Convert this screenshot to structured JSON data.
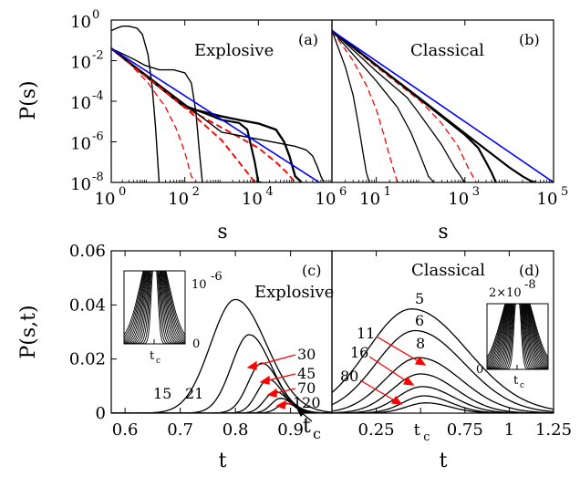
{
  "colors": {
    "black": "#000000",
    "red": "#ff0000",
    "blue": "#0000ff"
  },
  "chart_data": [
    {
      "id": "a",
      "type": "line",
      "panel_label": "(a)",
      "title": "Explosive",
      "ylabel": "P(s)",
      "xlabel": "s",
      "xscale": "log",
      "yscale": "log",
      "xlim": [
        1,
        1000000
      ],
      "ylim": [
        1e-08,
        1
      ],
      "xticks": [
        {
          "v": 1,
          "t": "10",
          "e": "0"
        },
        {
          "v": 100,
          "t": "10",
          "e": "2"
        },
        {
          "v": 10000,
          "t": "10",
          "e": "4"
        },
        {
          "v": 1000000,
          "t": "10",
          "e": "6"
        }
      ],
      "yticks": [
        {
          "v": 1,
          "t": "10",
          "e": "0"
        },
        {
          "v": 0.01,
          "t": "10",
          "e": "-2"
        },
        {
          "v": 0.0001,
          "t": "10",
          "e": "-4"
        },
        {
          "v": 1e-06,
          "t": "10",
          "e": "-6"
        },
        {
          "v": 1e-08,
          "t": "10",
          "e": "-8"
        }
      ],
      "series": [
        {
          "color": "black",
          "style": "solid",
          "width": 1.4,
          "x": [
            1,
            1.5,
            2,
            3,
            5,
            7,
            10,
            13,
            16,
            20
          ],
          "y": [
            0.3,
            0.42,
            0.5,
            0.5,
            0.4,
            0.2,
            0.02,
            0.0005,
            5e-06,
            1e-08
          ]
        },
        {
          "color": "black",
          "style": "solid",
          "width": 1.4,
          "x": [
            1,
            2,
            4,
            8,
            20,
            50,
            100,
            150,
            200,
            250,
            300
          ],
          "y": [
            0.04,
            0.022,
            0.012,
            0.006,
            0.0035,
            0.0035,
            0.0025,
            0.0008,
            3e-05,
            3e-07,
            1e-08
          ]
        },
        {
          "color": "red",
          "style": "dashed",
          "width": 1.3,
          "x": [
            1,
            3,
            10,
            30,
            60,
            100,
            150,
            200
          ],
          "y": [
            0.04,
            0.008,
            0.0008,
            5e-05,
            4e-06,
            3e-07,
            2e-08,
            1e-08
          ]
        },
        {
          "color": "black",
          "style": "solid",
          "width": 2.2,
          "x": [
            1,
            10,
            100,
            500,
            1000,
            3000,
            5000,
            8000,
            10000,
            12000
          ],
          "y": [
            0.04,
            0.0015,
            6e-05,
            2e-05,
            1.2e-05,
            8.5e-06,
            4e-06,
            1e-07,
            1e-08,
            1e-08
          ]
        },
        {
          "color": "red",
          "style": "dashed",
          "width": 1.9,
          "x": [
            1,
            10,
            100,
            1000,
            2000,
            4000,
            6000,
            8000
          ],
          "y": [
            0.04,
            0.0015,
            5e-05,
            1.2e-06,
            2.5e-07,
            5e-08,
            2e-08,
            1e-08
          ]
        },
        {
          "color": "black",
          "style": "solid",
          "width": 2.4,
          "x": [
            1,
            100,
            1000,
            3000,
            10000,
            30000,
            50000,
            70000,
            100000,
            150000
          ],
          "y": [
            0.04,
            5e-05,
            1.8e-05,
            1.2e-05,
            8e-06,
            4e-06,
            1e-06,
            2e-07,
            2e-08,
            1e-08
          ]
        },
        {
          "color": "red",
          "style": "dashed",
          "width": 1.9,
          "x": [
            1,
            100,
            1000,
            10000,
            30000,
            60000,
            100000
          ],
          "y": [
            0.04,
            5e-05,
            5e-06,
            5e-07,
            1e-07,
            3e-08,
            1e-08
          ]
        },
        {
          "color": "black",
          "style": "solid",
          "width": 1.4,
          "x": [
            1,
            1000,
            100000,
            200000,
            300000,
            400000,
            500000,
            600000
          ],
          "y": [
            0.04,
            3e-06,
            6e-07,
            4e-07,
            2e-07,
            6e-08,
            2e-08,
            1e-08
          ]
        },
        {
          "color": "blue",
          "style": "solid",
          "width": 1.6,
          "x": [
            1,
            1000000
          ],
          "y": [
            0.04,
            4e-09
          ]
        }
      ]
    },
    {
      "id": "b",
      "type": "line",
      "panel_label": "(b)",
      "title": "Classical",
      "xlabel": "s",
      "xscale": "log",
      "yscale": "log",
      "xlim": [
        1,
        100000
      ],
      "ylim": [
        1e-08,
        1
      ],
      "xticks": [
        {
          "v": 10,
          "t": "10",
          "e": "1"
        },
        {
          "v": 1000,
          "t": "10",
          "e": "3"
        },
        {
          "v": 100000,
          "t": "10",
          "e": "5"
        }
      ],
      "series": [
        {
          "color": "black",
          "style": "solid",
          "width": 1.3,
          "x": [
            1,
            2,
            3,
            4,
            5,
            6,
            7
          ],
          "y": [
            0.3,
            0.005,
            0.0002,
            6e-06,
            3e-07,
            3e-08,
            1e-08
          ]
        },
        {
          "color": "red",
          "style": "dashed",
          "width": 1.3,
          "x": [
            1,
            3,
            6,
            10,
            15,
            20,
            30
          ],
          "y": [
            0.3,
            0.01,
            0.0006,
            4e-05,
            2e-06,
            2e-07,
            1e-08
          ]
        },
        {
          "color": "black",
          "style": "solid",
          "width": 1.3,
          "x": [
            1,
            3,
            10,
            30,
            60,
            100,
            150,
            200
          ],
          "y": [
            0.3,
            0.02,
            0.001,
            5e-05,
            3e-06,
            2e-07,
            2e-08,
            1e-08
          ]
        },
        {
          "color": "black",
          "style": "solid",
          "width": 1.3,
          "x": [
            1,
            10,
            50,
            100,
            300,
            600,
            1000
          ],
          "y": [
            0.3,
            0.003,
            0.00015,
            2e-05,
            7e-07,
            5e-08,
            1e-08
          ]
        },
        {
          "color": "red",
          "style": "dashed",
          "width": 1.3,
          "x": [
            1,
            10,
            100,
            300,
            700,
            1200,
            1800
          ],
          "y": [
            0.3,
            0.005,
            0.0001,
            8e-06,
            6e-07,
            5e-08,
            1e-08
          ]
        },
        {
          "color": "black",
          "style": "solid",
          "width": 2.2,
          "x": [
            1,
            10,
            100,
            1000,
            2000,
            3000,
            4000,
            5000
          ],
          "y": [
            0.3,
            0.006,
            0.00012,
            2.2e-06,
            5e-07,
            1e-07,
            3e-08,
            1e-08
          ]
        },
        {
          "color": "black",
          "style": "solid",
          "width": 2.2,
          "x": [
            1,
            10,
            100,
            1000,
            10000,
            20000,
            30000,
            40000
          ],
          "y": [
            0.3,
            0.006,
            0.00013,
            2.6e-06,
            5.5e-08,
            2e-08,
            1.2e-08,
            1e-08
          ]
        },
        {
          "color": "blue",
          "style": "solid",
          "width": 1.6,
          "x": [
            1,
            100000
          ],
          "y": [
            0.3,
            1e-08
          ]
        }
      ]
    },
    {
      "id": "c",
      "type": "line",
      "panel_label": "(c)",
      "title": "Explosive",
      "ylabel": "P(s,t)",
      "xlabel": "t",
      "xlim": [
        0.575,
        0.975
      ],
      "ylim": [
        0,
        0.06
      ],
      "xticks": [
        {
          "v": 0.6,
          "t": "0.6"
        },
        {
          "v": 0.7,
          "t": "0.7"
        },
        {
          "v": 0.8,
          "t": "0.8"
        },
        {
          "v": 0.9,
          "t": "0.9"
        }
      ],
      "yticks": [
        {
          "v": 0,
          "t": "0"
        },
        {
          "v": 0.02,
          "t": "0.02"
        },
        {
          "v": 0.04,
          "t": "0.04"
        },
        {
          "v": 0.06,
          "t": "0.06"
        }
      ],
      "peaks": [
        {
          "center": 0.8,
          "height": 0.042,
          "width": 0.045,
          "label": "15"
        },
        {
          "center": 0.825,
          "height": 0.029,
          "width": 0.032,
          "label": "21"
        },
        {
          "center": 0.848,
          "height": 0.0185,
          "width": 0.025
        },
        {
          "center": 0.86,
          "height": 0.0125,
          "width": 0.021
        },
        {
          "center": 0.872,
          "height": 0.008,
          "width": 0.019
        },
        {
          "center": 0.882,
          "height": 0.0055,
          "width": 0.017
        },
        {
          "center": 0.892,
          "height": 0.0036,
          "width": 0.016
        }
      ],
      "annotations": [
        "15",
        "21",
        "30",
        "45",
        "70",
        "120",
        "t",
        "c"
      ],
      "inset": {
        "ylabel_text": "10",
        "ylabel_exp": "-6",
        "zero": "0",
        "tick_label": "t",
        "tick_sub": "c"
      }
    },
    {
      "id": "d",
      "type": "line",
      "panel_label": "(d)",
      "title": "Classical",
      "xlabel": "t",
      "xlim": [
        0,
        1.25
      ],
      "ylim": [
        0,
        0.06
      ],
      "xticks": [
        {
          "v": 0.25,
          "t": "0.25"
        },
        {
          "v": 0.75,
          "t": "0.75"
        },
        {
          "v": 1,
          "t": "1"
        },
        {
          "v": 1.25,
          "t": "1.25"
        }
      ],
      "tc_tick": {
        "v": 0.5,
        "t": "t",
        "sub": "c"
      },
      "peaks": [
        {
          "center": 0.45,
          "height": 0.0385,
          "width": 0.25,
          "label": "5"
        },
        {
          "center": 0.47,
          "height": 0.0305,
          "width": 0.22,
          "label": "6"
        },
        {
          "center": 0.49,
          "height": 0.0205,
          "width": 0.19,
          "label": "8"
        },
        {
          "center": 0.5,
          "height": 0.0145,
          "width": 0.16
        },
        {
          "center": 0.51,
          "height": 0.0098,
          "width": 0.14
        },
        {
          "center": 0.52,
          "height": 0.0064,
          "width": 0.12
        },
        {
          "center": 0.53,
          "height": 0.0038,
          "width": 0.11
        }
      ],
      "annotations": [
        "5",
        "6",
        "8",
        "11",
        "16",
        "80"
      ],
      "inset": {
        "ylabel_text": "2×10",
        "ylabel_exp": "-8",
        "zero": "0",
        "tick_label": "t",
        "tick_sub": "c"
      }
    }
  ]
}
